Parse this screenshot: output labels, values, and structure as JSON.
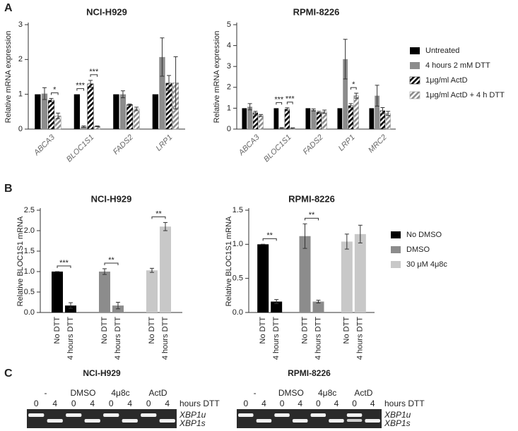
{
  "panel_labels": [
    "A",
    "B",
    "C"
  ],
  "chart_data": [
    {
      "type": "bar",
      "grouping": "category",
      "title": "NCI-H929",
      "ylabel": "Relative mRNA expression",
      "categories": [
        "ABCA3",
        "BLOC1S1",
        "FADS2",
        "LRP1"
      ],
      "series": [
        {
          "color": "#000000",
          "values": [
            1,
            1,
            1,
            1
          ]
        },
        {
          "color": "#8c8c8c",
          "values": [
            1.02,
            0.07,
            1.0,
            2.07
          ],
          "errors": [
            0.17,
            0.02,
            0.1,
            0.55
          ]
        },
        {
          "color": "#000000",
          "hatch": true,
          "values": [
            0.83,
            1.3,
            0.7,
            1.32
          ],
          "errors": [
            0.05,
            0.1,
            0.02,
            0.22
          ]
        },
        {
          "color": "#8c8c8c",
          "hatch": true,
          "values": [
            0.38,
            0.08,
            0.58,
            1.33
          ],
          "errors": [
            0.08,
            0.01,
            0.05,
            0.75
          ]
        }
      ],
      "ylim": [
        0,
        3
      ],
      "yticks": [
        0,
        1,
        2,
        3
      ],
      "annotations": [
        {
          "text": "*",
          "category": 0,
          "series": [
            2,
            3
          ]
        },
        {
          "text": "***",
          "category": 1,
          "series": [
            0,
            1
          ]
        },
        {
          "text": "***",
          "category": 1,
          "series": [
            2,
            3
          ]
        }
      ]
    },
    {
      "type": "bar",
      "grouping": "category",
      "title": "RPMI-8226",
      "ylabel": "Relative mRNA expression",
      "legend": "right",
      "categories": [
        "ABCA3",
        "BLOC1S1",
        "FADS2",
        "LRP1",
        "MRC2"
      ],
      "series": [
        {
          "name": "Untreated",
          "color": "#000000",
          "values": [
            1,
            1,
            1,
            1,
            1
          ]
        },
        {
          "name": "4 hours 2 mM DTT",
          "color": "#8c8c8c",
          "values": [
            1.07,
            0.05,
            0.92,
            3.35,
            1.6
          ],
          "errors": [
            0.15,
            0.02,
            0.05,
            0.95,
            0.5
          ]
        },
        {
          "name": "1μg/ml ActD",
          "color": "#000000",
          "hatch": true,
          "values": [
            0.78,
            0.95,
            0.8,
            1.12,
            0.88
          ],
          "errors": [
            0.07,
            0.07,
            0.05,
            0.1,
            0.15
          ]
        },
        {
          "name": "1μg/ml ActD + 4 h DTT",
          "color": "#8c8c8c",
          "hatch": true,
          "values": [
            0.65,
            0.05,
            0.83,
            1.6,
            0.75
          ],
          "errors": [
            0.05,
            0.01,
            0.08,
            0.12,
            0.1
          ]
        }
      ],
      "ylim": [
        0,
        5
      ],
      "yticks": [
        0,
        1,
        2,
        3,
        4,
        5
      ],
      "annotations": [
        {
          "text": "***",
          "category": 1,
          "series": [
            0,
            1
          ]
        },
        {
          "text": "***",
          "category": 1,
          "series": [
            2,
            3
          ]
        },
        {
          "text": "*",
          "category": 3,
          "series": [
            2,
            3
          ]
        }
      ]
    },
    {
      "type": "bar",
      "grouping": "series",
      "title": "NCI-H929",
      "ylabel": "Relative BLOC1S1 mRNA",
      "categories": [
        "No DTT",
        "4 hours DTT"
      ],
      "series": [
        {
          "color": "#000000",
          "values": [
            1.0,
            0.17
          ],
          "errors": [
            0,
            0.07
          ]
        },
        {
          "color": "#8c8c8c",
          "values": [
            1.0,
            0.17
          ],
          "errors": [
            0.07,
            0.08
          ]
        },
        {
          "color": "#c8c8c8",
          "values": [
            1.03,
            2.1
          ],
          "errors": [
            0.05,
            0.1
          ]
        }
      ],
      "ylim": [
        0,
        2.5
      ],
      "yticks": [
        {
          "value": 0,
          "label": "0.0"
        },
        {
          "value": 0.5,
          "label": "0.5"
        },
        {
          "value": 1,
          "label": "1.0"
        },
        {
          "value": 1.5,
          "label": "1.5"
        },
        {
          "value": 2,
          "label": "2.0"
        },
        {
          "value": 2.5,
          "label": "2.5"
        }
      ],
      "annotations": [
        {
          "text": "***",
          "series": 0
        },
        {
          "text": "**",
          "series": 1
        },
        {
          "text": "**",
          "series": 2
        }
      ]
    },
    {
      "type": "bar",
      "grouping": "series",
      "title": "RPMI-8226",
      "ylabel": "Relative BLOC1S1 mRNA",
      "legend": "right",
      "categories": [
        "No DTT",
        "4 hours DTT"
      ],
      "series": [
        {
          "name": "No DMSO",
          "color": "#000000",
          "values": [
            1.0,
            0.16
          ],
          "errors": [
            0,
            0.03
          ]
        },
        {
          "name": "DMSO",
          "color": "#8c8c8c",
          "values": [
            1.12,
            0.16
          ],
          "errors": [
            0.18,
            0.02
          ]
        },
        {
          "name": "30 μM 4μ8c",
          "color": "#c8c8c8",
          "values": [
            1.04,
            1.15
          ],
          "errors": [
            0.11,
            0.13
          ]
        }
      ],
      "ylim": [
        0,
        1.5
      ],
      "yticks": [
        {
          "value": 0,
          "label": "0.0"
        },
        {
          "value": 0.5,
          "label": "0.5"
        },
        {
          "value": 1,
          "label": "1.0"
        },
        {
          "value": 1.5,
          "label": "1.5"
        }
      ],
      "annotations": [
        {
          "text": "**",
          "series": 0
        },
        {
          "text": "**",
          "series": 1
        }
      ]
    }
  ],
  "gels": [
    {
      "title": "NCI-H929",
      "groups": [
        "-",
        "DMSO",
        "4μ8c",
        "ActD"
      ]
    },
    {
      "title": "RPMI-8226",
      "groups": [
        "-",
        "DMSO",
        "4μ8c",
        "ActD"
      ]
    }
  ],
  "times": [
    "0",
    "4"
  ],
  "time_unit": "hours DTT",
  "bands": [
    "XBP1u",
    "XBP1s"
  ]
}
